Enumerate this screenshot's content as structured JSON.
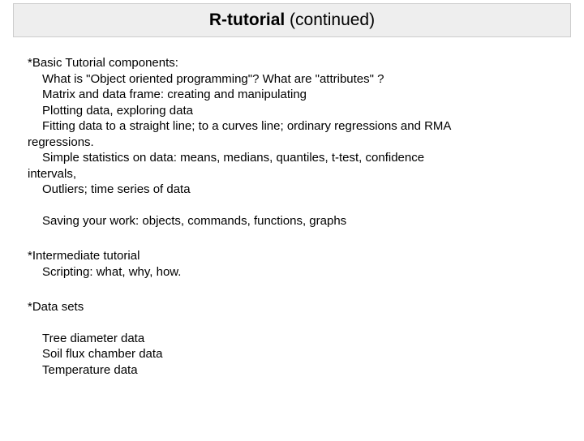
{
  "title": {
    "bold": "R-tutorial ",
    "regular": "(continued)"
  },
  "sections": {
    "basic": {
      "header": "*Basic Tutorial components:",
      "lines": [
        "What is \"Object oriented programming\"? What are \"attributes\" ?",
        "Matrix and data frame:  creating and manipulating",
        "Plotting data, exploring data",
        "Fitting data to a straight line; to a curves line; ordinary regressions and RMA",
        "regressions.",
        "Simple statistics on data: means, medians, quantiles, t-test, confidence",
        "intervals,",
        "Outliers; time series of data"
      ],
      "after": "Saving your work:  objects, commands, functions, graphs"
    },
    "intermediate": {
      "header": "*Intermediate tutorial",
      "lines": [
        "Scripting:  what, why, how."
      ]
    },
    "datasets": {
      "header": "*Data sets",
      "lines": [
        "Tree diameter data",
        "Soil flux chamber data",
        "Temperature data"
      ]
    }
  },
  "colors": {
    "title_bg": "#eeeeee",
    "title_border": "#cccccc",
    "text": "#000000",
    "background": "#ffffff"
  },
  "typography": {
    "title_fontsize": 21,
    "body_fontsize": 15,
    "font_family": "Arial"
  }
}
